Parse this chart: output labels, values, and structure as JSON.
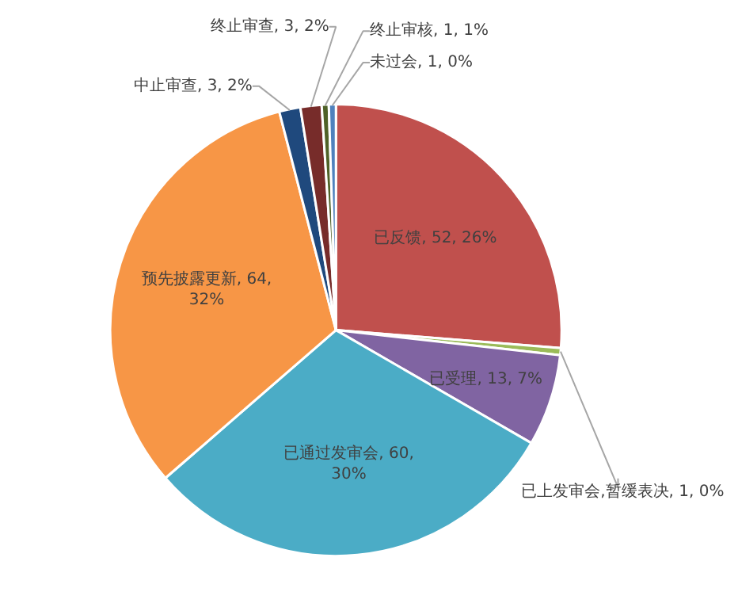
{
  "chart_data": {
    "type": "pie",
    "categories": [
      "已反馈",
      "已上发审会,暂缓表决",
      "已受理",
      "已通过发审会",
      "预先披露更新",
      "中止审查",
      "终止审查",
      "终止审核",
      "未过会"
    ],
    "values": [
      52,
      1,
      13,
      60,
      64,
      3,
      3,
      1,
      1
    ],
    "colors": [
      "#c0504d",
      "#9bbb59",
      "#8064a2",
      "#4bacc6",
      "#f79646",
      "#1f497d",
      "#772c2a",
      "#4f6228",
      "#4f81bd"
    ],
    "value_labels": [
      "52, 26%",
      "1, 0%",
      "13, 7%",
      "60, 30%",
      "64, 32%",
      "3, 2%",
      "3, 2%",
      "1, 1%",
      "1, 0%"
    ],
    "legend": false
  }
}
